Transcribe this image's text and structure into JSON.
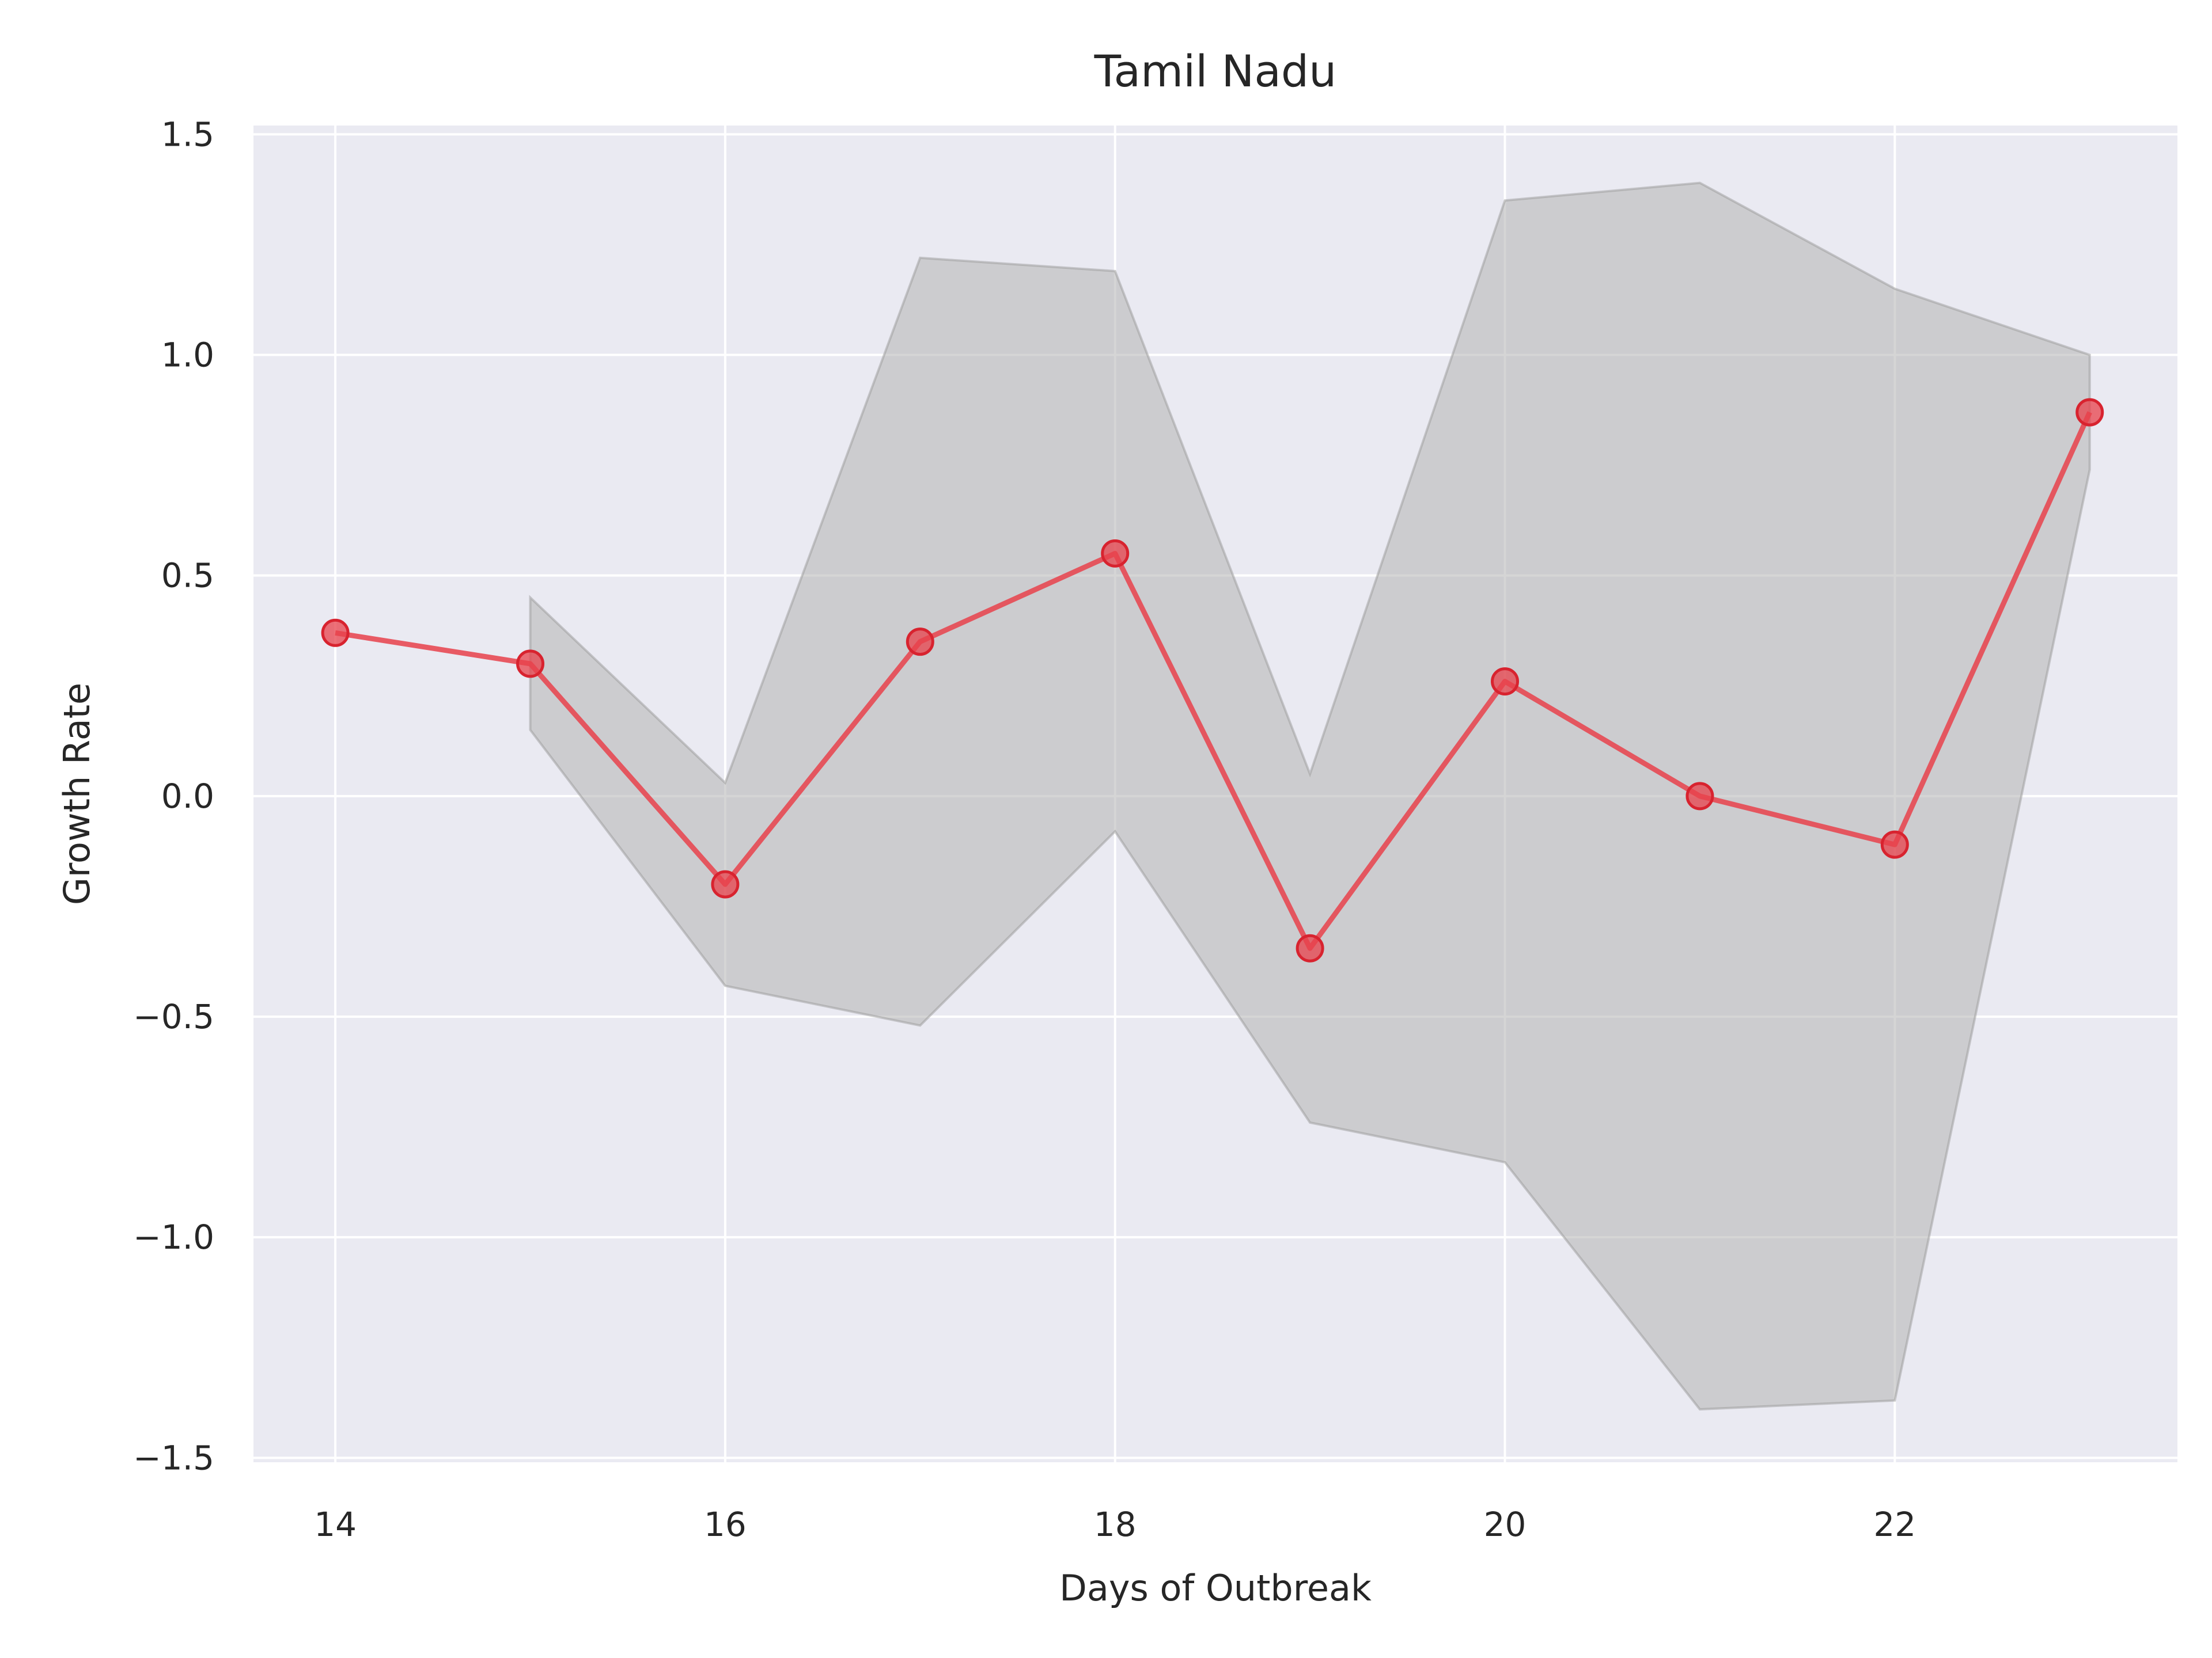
{
  "chart_data": {
    "type": "line",
    "title": "Tamil Nadu",
    "xlabel": "Days of Outbreak",
    "ylabel": "Growth Rate",
    "xlim": [
      13.58,
      23.45
    ],
    "ylim": [
      -1.51,
      1.52
    ],
    "xticks": [
      14,
      16,
      18,
      20,
      22
    ],
    "xtick_labels": [
      "14",
      "16",
      "18",
      "20",
      "22"
    ],
    "yticks": [
      -1.5,
      -1.0,
      -0.5,
      0.0,
      0.5,
      1.0,
      1.5
    ],
    "ytick_labels": [
      "−1.5",
      "−1.0",
      "−0.5",
      "0.0",
      "0.5",
      "1.0",
      "1.5"
    ],
    "grid": true,
    "series": [
      {
        "x": [
          14,
          15,
          16,
          17,
          18,
          19,
          20,
          21,
          22,
          23
        ],
        "values": [
          0.37,
          0.3,
          -0.2,
          0.35,
          0.55,
          -0.345,
          0.26,
          0.0,
          -0.11,
          0.87
        ],
        "color": "#e8414b"
      }
    ],
    "band": {
      "x": [
        15,
        16,
        17,
        18,
        19,
        20,
        21,
        22,
        23
      ],
      "upper": [
        0.45,
        0.03,
        1.22,
        1.19,
        0.05,
        1.35,
        1.39,
        1.15,
        1.0
      ],
      "lower": [
        0.15,
        -0.43,
        -0.52,
        -0.08,
        -0.74,
        -0.83,
        -1.39,
        -1.37,
        0.74
      ],
      "color": "#b3b3b3"
    },
    "colors": {
      "plot_background": "#eaeaf2",
      "grid": "#ffffff",
      "text": "#262626"
    }
  }
}
